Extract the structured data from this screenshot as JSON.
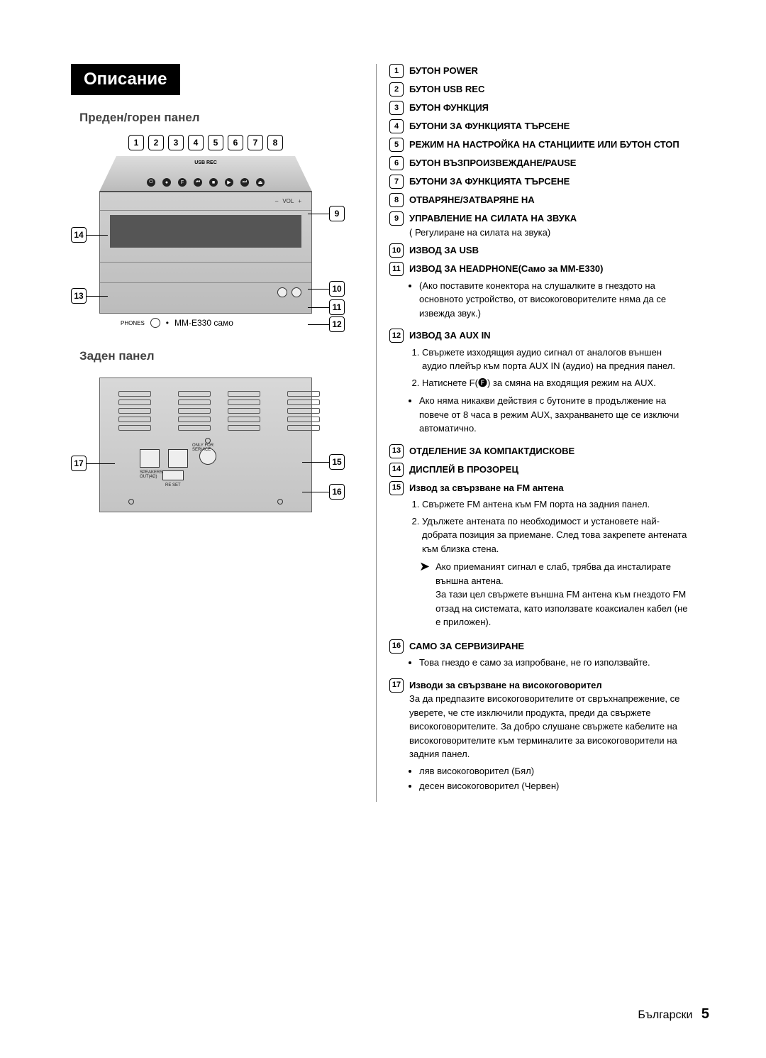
{
  "page": {
    "title": "Описание",
    "front_heading": "Преден/горен панел",
    "back_heading": "Заден панел",
    "phones_note_label": "PHONES",
    "phones_note_text": "MM-E330 само",
    "footer_lang": "Български",
    "footer_page": "5",
    "usb_rec_label": "USB REC",
    "vol_label": "VOL",
    "vol_minus": "–",
    "vol_plus": "+"
  },
  "front_numbers": [
    "1",
    "2",
    "3",
    "4",
    "5",
    "6",
    "7",
    "8"
  ],
  "left_callouts": {
    "n9": "9",
    "n10": "10",
    "n11": "11",
    "n12": "12",
    "n13": "13",
    "n14": "14",
    "n15": "15",
    "n16": "16",
    "n17": "17"
  },
  "legend": [
    {
      "n": "1",
      "title": "БУТОН POWER"
    },
    {
      "n": "2",
      "title": "БУТОН USB REC"
    },
    {
      "n": "3",
      "title": "БУТОН ФУНКЦИЯ"
    },
    {
      "n": "4",
      "title": "БУТОНИ ЗА ФУНКЦИЯТА ТЪРСЕНЕ"
    },
    {
      "n": "5",
      "title": "РЕЖИМ НА НАСТРОЙКА НА СТАНЦИИТЕ ИЛИ БУТОН СТОП"
    },
    {
      "n": "6",
      "title": "БУТОН ВЪЗПРОИЗВЕЖДАНЕ/PAUSE"
    },
    {
      "n": "7",
      "title": "БУТОНИ ЗА ФУНКЦИЯТА ТЪРСЕНЕ"
    },
    {
      "n": "8",
      "title": "ОТВАРЯНЕ/ЗАТВАРЯНЕ НА"
    },
    {
      "n": "9",
      "title": "УПРАВЛЕНИЕ НА СИЛАТА НА ЗВУКА",
      "sub": "( Регулиране на силата на звука)"
    },
    {
      "n": "10",
      "title": "ИЗВОД ЗА USB"
    },
    {
      "n": "11",
      "title": "ИЗВОД ЗА HEADPHONE(Само за MM-E330)",
      "bullets": [
        "(Ако поставите конектора на слушалките в гнездото на основното устройство, от високоговорителите няма да се извежда звук.)"
      ]
    },
    {
      "n": "12",
      "title": "ИЗВОД ЗА AUX IN",
      "ol": [
        "Свържете изходящия аудио сигнал от аналогов външен аудио плейър към порта AUX IN (аудио) на предния панел.",
        "Натиснете F(🅕) за смяна на входящия режим на AUX."
      ],
      "bullets": [
        "Ако няма никакви действия с бутоните в продължение на повече от 8 часа в режим AUX, захранването ще се изключи автоматично."
      ]
    },
    {
      "n": "13",
      "title": "ОТДЕЛЕНИЕ ЗА КОМПАКТДИСКОВЕ"
    },
    {
      "n": "14",
      "title": "ДИСПЛЕЙ В ПРОЗОРЕЦ"
    },
    {
      "n": "15",
      "title": "Извод за свързване на FM антена",
      "ol": [
        "Свържете FM антена към FM порта на задния панел.",
        "Удължете антената по необходимост и установете най-добрата позиция за приемане. След това закрепете антената към близка стена."
      ],
      "note": "Ако приеманият сигнал е слаб, трябва да инсталирате външна антена.\nЗа тази цел свържете външна FM антена към гнездото FM отзад на системата, като използвате коаксиален кабел  (не е приложен)."
    },
    {
      "n": "16",
      "title": "САМО ЗА СЕРВИЗИРАНЕ",
      "bullets": [
        "Това гнездо е само за изпробване, не го използвайте."
      ]
    },
    {
      "n": "17",
      "title": "Изводи за свързване на високоговорител",
      "sub": "За да предпазите високоговорителите от свръхнапрежение, се уверете, че сте изключили продукта, преди да свържете високоговорителите. За добро слушане свържете кабелите на високоговорителите към терминалите за високоговорители на задния панел.",
      "bullets": [
        "ляв високоговорител (Бял)",
        "десен високоговорител (Червен)"
      ]
    }
  ]
}
